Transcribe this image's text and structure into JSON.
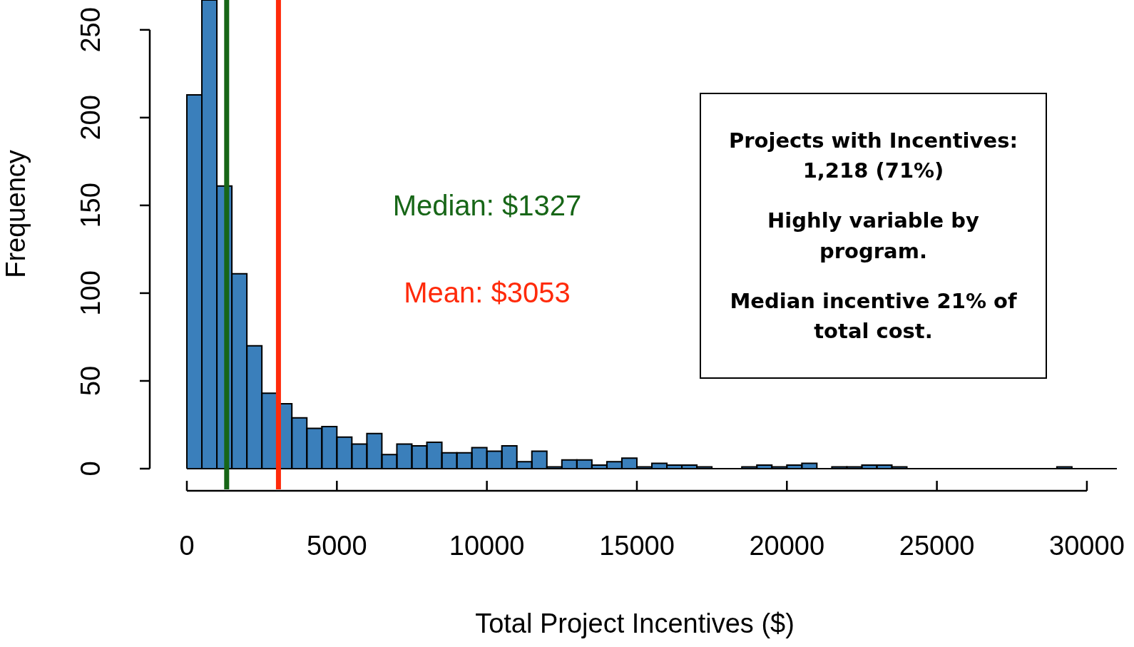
{
  "chart_data": {
    "type": "histogram",
    "xlabel": "Total Project Incentives ($)",
    "ylabel": "Frequency",
    "bins": [
      0,
      500,
      1000,
      1500,
      2000,
      2500,
      3000,
      3500,
      4000,
      4500,
      5000,
      5500,
      6000,
      6500,
      7000,
      7500,
      8000,
      8500,
      9000,
      9500,
      10000,
      10500,
      11000,
      11500,
      12000,
      12500,
      13000,
      13500,
      14000,
      14500,
      15000,
      15500,
      16000,
      16500,
      17000,
      17500,
      18000,
      18500,
      19000,
      19500,
      20000,
      20500,
      21000,
      21500,
      22000,
      22500,
      23000,
      23500,
      24000,
      24500,
      25000,
      25500,
      26000,
      26500,
      27000,
      27500,
      28000,
      28500,
      29000,
      29500,
      30000,
      30500,
      31000
    ],
    "values": [
      213,
      267,
      161,
      111,
      70,
      43,
      37,
      29,
      23,
      24,
      18,
      14,
      20,
      8,
      14,
      13,
      15,
      9,
      9,
      12,
      10,
      13,
      4,
      10,
      1,
      5,
      5,
      2,
      4,
      6,
      1,
      3,
      2,
      2,
      1,
      0,
      0,
      1,
      2,
      1,
      2,
      3,
      0,
      1,
      1,
      2,
      2,
      1,
      0,
      0,
      0,
      0,
      0,
      0,
      0,
      0,
      0,
      0,
      1,
      0,
      0,
      0
    ],
    "color": "#3a7fbb",
    "xlim": [
      0,
      31000
    ],
    "xticks": [
      0,
      5000,
      10000,
      15000,
      20000,
      25000,
      30000
    ],
    "ylim": [
      0,
      267
    ],
    "yticks": [
      0,
      50,
      100,
      150,
      200,
      250
    ],
    "ref_lines": [
      {
        "axis": "x",
        "value": 1327,
        "label": "Median: $1327",
        "color": "#176617"
      },
      {
        "axis": "x",
        "value": 3053,
        "label": "Mean: $3053",
        "color": "#ff2a0a"
      }
    ],
    "annotations": [
      "Projects with Incentives: 1,218 (71%)",
      "Highly variable by program.",
      "Median incentive 21% of total cost."
    ]
  }
}
